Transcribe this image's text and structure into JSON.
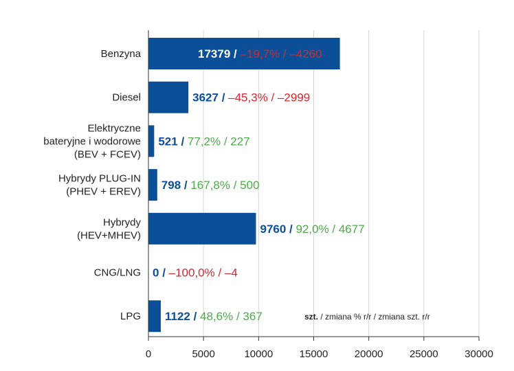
{
  "chart_data": {
    "type": "bar",
    "orientation": "horizontal",
    "categories": [
      [
        "Benzyna"
      ],
      [
        "Diesel"
      ],
      [
        "Elektryczne",
        "bateryjne i wodorowe",
        "(BEV + FCEV)"
      ],
      [
        "Hybrydy PLUG-IN",
        "(PHEV + EREV)"
      ],
      [
        "Hybrydy",
        "(HEV+MHEV)"
      ],
      [
        "CNG/LNG"
      ],
      [
        "LPG"
      ]
    ],
    "values": [
      17379,
      3627,
      521,
      798,
      9760,
      0,
      1122
    ],
    "labels": [
      {
        "units": "17379",
        "sep": " / ",
        "rest": "–19,7% / –4260",
        "trend": "down"
      },
      {
        "units": "3627",
        "sep": " / ",
        "rest": "–45,3% / –2999",
        "trend": "down"
      },
      {
        "units": "521",
        "sep": " / ",
        "rest": "77,2% / 227",
        "trend": "up"
      },
      {
        "units": "798",
        "sep": " / ",
        "rest": "167,8% / 500",
        "trend": "up"
      },
      {
        "units": "9760",
        "sep": " / ",
        "rest": "92,0% / 4677",
        "trend": "up"
      },
      {
        "units": "0",
        "sep": " / ",
        "rest": "–100,0% / –4",
        "trend": "down"
      },
      {
        "units": "1122",
        "sep": " / ",
        "rest": "48,6% / 367",
        "trend": "up"
      }
    ],
    "xlim": [
      0,
      30000
    ],
    "xticks": [
      0,
      5000,
      10000,
      15000,
      20000,
      25000,
      30000
    ],
    "grid": true,
    "note": {
      "strong": "szt.",
      "rest": " / zmiana % r/r / zmiana szt. r/r"
    },
    "colors": {
      "bar": "#0a4f97",
      "units_text": "#0a4f97",
      "down": "#d7282f",
      "up": "#4cab48",
      "grid": "#d6d6d6",
      "axis": "#333333"
    }
  }
}
